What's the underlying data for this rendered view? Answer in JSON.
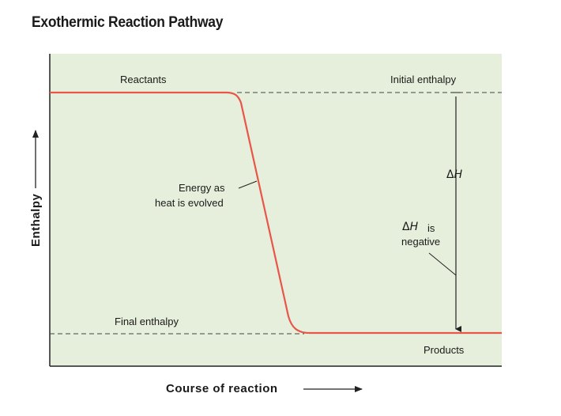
{
  "title": "Exothermic Reaction Pathway",
  "labels": {
    "reactants": "Reactants",
    "initial_enthalpy": "Initial enthalpy",
    "energy_line1": "Energy as",
    "energy_line2": "heat is evolved",
    "delta": "Δ",
    "h": "H",
    "is": "is",
    "negative": "negative",
    "final_enthalpy": "Final enthalpy",
    "products": "Products"
  },
  "axes": {
    "x_label": "Course of reaction",
    "y_label": "Enthalpy"
  },
  "colors": {
    "plot_bg": "#e6efdb",
    "curve": "#e8554a",
    "axis": "#222222",
    "dashed": "#444444"
  }
}
